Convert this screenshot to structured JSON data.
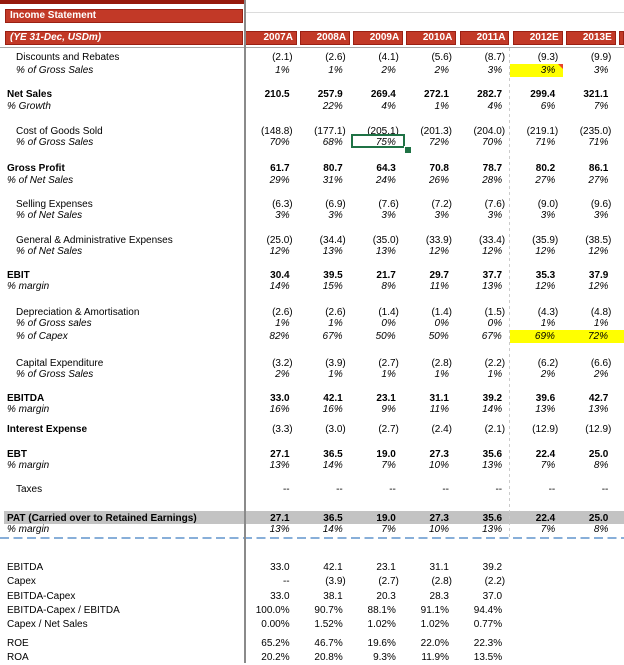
{
  "title_bar": {
    "label": "Income Statement"
  },
  "subtitle_bar": {
    "label": "(YE 31-Dec, USDm)"
  },
  "columns": [
    "2007A",
    "2008A",
    "2009A",
    "2010A",
    "2011A",
    "2012E",
    "2013E"
  ],
  "colors": {
    "header_red": "#C23927",
    "top_strip_red": "#96190C",
    "highlight_yellow": "#FFFF00",
    "selection_green": "#1F7245",
    "pat_row_gray": "#C3C3C3",
    "page_break_blue": "#88AFD9"
  },
  "rows": [
    {
      "id": "discounts",
      "label": "Discounts and Rebates",
      "indent": true,
      "values": [
        "(2.1)",
        "(2.6)",
        "(4.1)",
        "(5.6)",
        "(8.7)",
        "(9.3)",
        "(9.9)"
      ]
    },
    {
      "id": "discounts-pct",
      "label": "% of Gross Sales",
      "indent": true,
      "italic": true,
      "values": [
        "1%",
        "1%",
        "2%",
        "2%",
        "3%",
        "3%",
        "3%"
      ],
      "yellow": [
        5
      ],
      "comment": 5
    },
    {
      "id": "net-sales",
      "label": "Net Sales",
      "bold": true,
      "values": [
        "210.5",
        "257.9",
        "269.4",
        "272.1",
        "282.7",
        "299.4",
        "321.1"
      ]
    },
    {
      "id": "growth-pct",
      "label": "% Growth",
      "italic": true,
      "values": [
        "",
        "22%",
        "4%",
        "1%",
        "4%",
        "6%",
        "7%"
      ]
    },
    {
      "id": "cogs",
      "label": "Cost of Goods Sold",
      "indent": true,
      "values": [
        "(148.8)",
        "(177.1)",
        "(205.1)",
        "(201.3)",
        "(204.0)",
        "(219.1)",
        "(235.0)"
      ]
    },
    {
      "id": "cogs-pct",
      "label": "% of Gross Sales",
      "indent": true,
      "italic": true,
      "values": [
        "70%",
        "68%",
        "75%",
        "72%",
        "70%",
        "71%",
        "71%"
      ],
      "selection_box_col": 2
    },
    {
      "id": "gross-profit",
      "label": "Gross Profit",
      "bold": true,
      "values": [
        "61.7",
        "80.7",
        "64.3",
        "70.8",
        "78.7",
        "80.2",
        "86.1"
      ]
    },
    {
      "id": "gp-pct",
      "label": "% of Net Sales",
      "italic": true,
      "values": [
        "29%",
        "31%",
        "24%",
        "26%",
        "28%",
        "27%",
        "27%"
      ]
    },
    {
      "id": "selling",
      "label": "Selling Expenses",
      "indent": true,
      "values": [
        "(6.3)",
        "(6.9)",
        "(7.6)",
        "(7.2)",
        "(7.6)",
        "(9.0)",
        "(9.6)"
      ]
    },
    {
      "id": "selling-pct",
      "label": "% of Net Sales",
      "indent": true,
      "italic": true,
      "values": [
        "3%",
        "3%",
        "3%",
        "3%",
        "3%",
        "3%",
        "3%"
      ]
    },
    {
      "id": "ga",
      "label": "General & Administrative Expenses",
      "indent": true,
      "values": [
        "(25.0)",
        "(34.4)",
        "(35.0)",
        "(33.9)",
        "(33.4)",
        "(35.9)",
        "(38.5)"
      ]
    },
    {
      "id": "ga-pct",
      "label": "% of Net Sales",
      "indent": true,
      "italic": true,
      "values": [
        "12%",
        "13%",
        "13%",
        "12%",
        "12%",
        "12%",
        "12%"
      ]
    },
    {
      "id": "ebit",
      "label": "EBIT",
      "bold": true,
      "values": [
        "30.4",
        "39.5",
        "21.7",
        "29.7",
        "37.7",
        "35.3",
        "37.9"
      ]
    },
    {
      "id": "ebit-pct",
      "label": "% margin",
      "italic": true,
      "values": [
        "14%",
        "15%",
        "8%",
        "11%",
        "13%",
        "12%",
        "12%"
      ]
    },
    {
      "id": "da",
      "label": "Depreciation & Amortisation",
      "indent": true,
      "values": [
        "(2.6)",
        "(2.6)",
        "(1.4)",
        "(1.4)",
        "(1.5)",
        "(4.3)",
        "(4.8)"
      ]
    },
    {
      "id": "da-pct-gross",
      "label": "% of Gross sales",
      "indent": true,
      "italic": true,
      "values": [
        "1%",
        "1%",
        "0%",
        "0%",
        "0%",
        "1%",
        "1%"
      ]
    },
    {
      "id": "da-pct-capex",
      "label": "% of Capex",
      "indent": true,
      "italic": true,
      "values": [
        "82%",
        "67%",
        "50%",
        "50%",
        "67%",
        "69%",
        "72%"
      ],
      "yellow": [
        5,
        6
      ],
      "extend_yellow": true
    },
    {
      "id": "capex",
      "label": "Capital Expenditure",
      "indent": true,
      "values": [
        "(3.2)",
        "(3.9)",
        "(2.7)",
        "(2.8)",
        "(2.2)",
        "(6.2)",
        "(6.6)"
      ]
    },
    {
      "id": "capex-pct",
      "label": "% of Gross Sales",
      "indent": true,
      "italic": true,
      "values": [
        "2%",
        "1%",
        "1%",
        "1%",
        "1%",
        "2%",
        "2%"
      ]
    },
    {
      "id": "ebitda",
      "label": "EBITDA",
      "bold": true,
      "values": [
        "33.0",
        "42.1",
        "23.1",
        "31.1",
        "39.2",
        "39.6",
        "42.7"
      ]
    },
    {
      "id": "ebitda-pct",
      "label": "% margin",
      "italic": true,
      "values": [
        "16%",
        "16%",
        "9%",
        "11%",
        "14%",
        "13%",
        "13%"
      ]
    },
    {
      "id": "interest",
      "label": "Interest Expense",
      "label_bold": true,
      "values": [
        "(3.3)",
        "(3.0)",
        "(2.7)",
        "(2.4)",
        "(2.1)",
        "(12.9)",
        "(12.9)"
      ]
    },
    {
      "id": "ebt",
      "label": "EBT",
      "bold": true,
      "values": [
        "27.1",
        "36.5",
        "19.0",
        "27.3",
        "35.6",
        "22.4",
        "25.0"
      ]
    },
    {
      "id": "ebt-pct",
      "label": "% margin",
      "italic": true,
      "values": [
        "13%",
        "14%",
        "7%",
        "10%",
        "13%",
        "7%",
        "8%"
      ]
    },
    {
      "id": "taxes",
      "label": "Taxes",
      "indent": true,
      "values": [
        "--",
        "--",
        "--",
        "--",
        "--",
        "--",
        "--"
      ]
    },
    {
      "id": "pat",
      "label": "PAT (Carried over to Retained Earnings)",
      "bold": true,
      "values": [
        "27.1",
        "36.5",
        "19.0",
        "27.3",
        "35.6",
        "22.4",
        "25.0"
      ]
    },
    {
      "id": "pat-pct",
      "label": "% margin",
      "italic": true,
      "values": [
        "13%",
        "14%",
        "7%",
        "10%",
        "13%",
        "7%",
        "8%"
      ]
    }
  ],
  "bottom_rows": [
    {
      "id": "calc-ebitda",
      "label": "EBITDA",
      "values": [
        "33.0",
        "42.1",
        "23.1",
        "31.1",
        "39.2"
      ]
    },
    {
      "id": "calc-capex",
      "label": "Capex",
      "values": [
        "--",
        "(3.9)",
        "(2.7)",
        "(2.8)",
        "(2.2)"
      ]
    },
    {
      "id": "calc-ebitda-capex",
      "label": "EBITDA-Capex",
      "values": [
        "33.0",
        "38.1",
        "20.3",
        "28.3",
        "37.0"
      ]
    },
    {
      "id": "calc-ec-ratio",
      "label": "EBITDA-Capex / EBITDA",
      "values": [
        "100.0%",
        "90.7%",
        "88.1%",
        "91.1%",
        "94.4%"
      ]
    },
    {
      "id": "calc-capex-ns",
      "label": "Capex / Net Sales",
      "values": [
        "0.00%",
        "1.52%",
        "1.02%",
        "1.02%",
        "0.77%"
      ]
    },
    {
      "id": "roe",
      "label": "ROE",
      "values": [
        "65.2%",
        "46.7%",
        "19.6%",
        "22.0%",
        "22.3%"
      ]
    },
    {
      "id": "roa",
      "label": "ROA",
      "values": [
        "20.2%",
        "20.8%",
        "9.3%",
        "11.9%",
        "13.5%"
      ]
    }
  ]
}
